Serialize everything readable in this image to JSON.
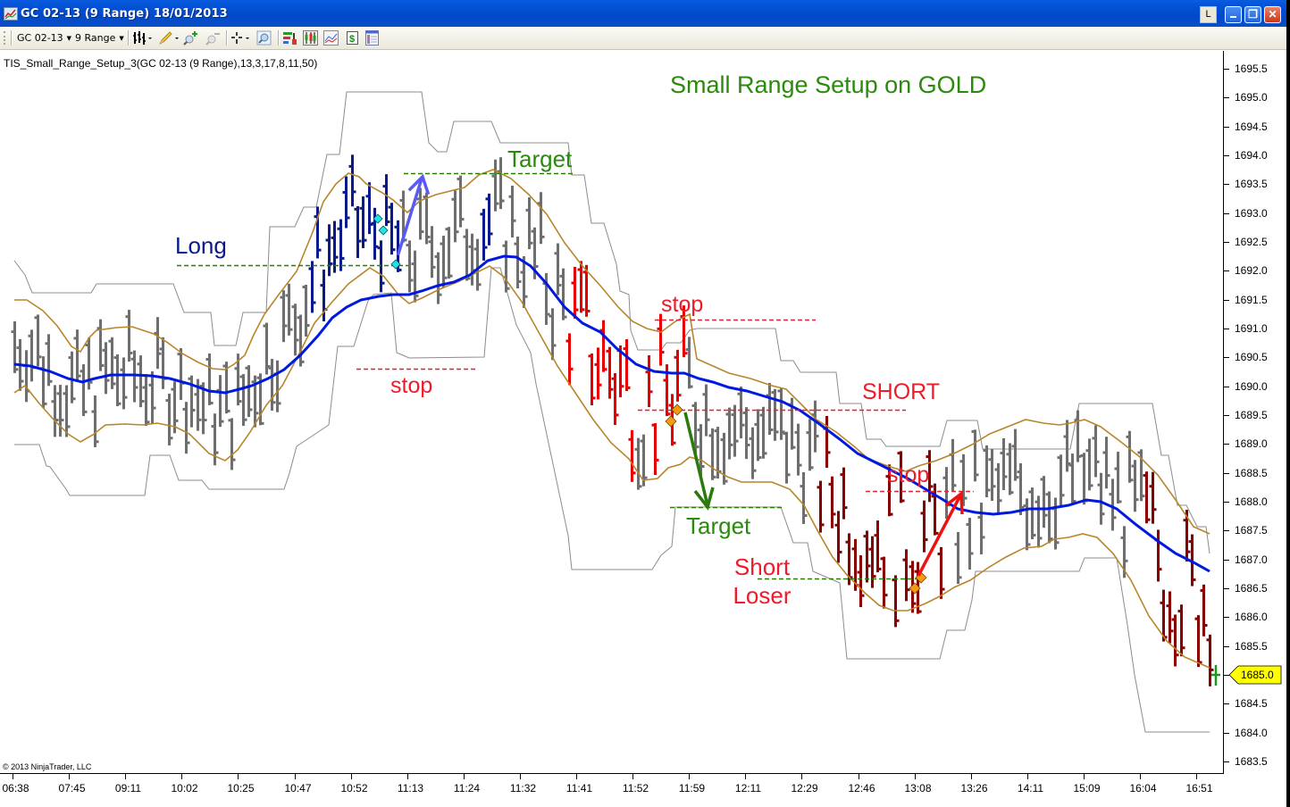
{
  "window": {
    "title": "GC 02-13 (9 Range)  18/01/2013",
    "buttons": {
      "link": "L",
      "minimize": "_",
      "maximize": "❐",
      "close": "✕"
    }
  },
  "toolbar": {
    "instrument": "GC 02-13",
    "interval": "9 Range",
    "icons": [
      "bar-style-icon",
      "drawing-pencil-icon",
      "zoom-in-icon",
      "zoom-out-icon",
      "crosshair-icon",
      "properties-magnifier-icon",
      "indicators-icon",
      "strategies-icon",
      "chart-trader-icon",
      "dollar-icon",
      "data-box-icon"
    ]
  },
  "indicator_label": "TIS_Small_Range_Setup_3(GC 02-13 (9 Range),13,3,17,8,11,50)",
  "copyright": "© 2013 NinjaTrader, LLC",
  "colors": {
    "neutral_bar": "#6e6e6e",
    "long_bar": "#0a1a8c",
    "short_bar": "#e80000",
    "short_loser_bar": "#880000",
    "ma_line": "#0019e0",
    "band_line": "#b8862a",
    "channel_line": "#8c8c8c",
    "title_green": "#2a8a0c",
    "annot_red": "#f01a2a",
    "annot_blue": "#0a1a8c",
    "last_price_bg": "#ffff00"
  },
  "last_price": "1685.0",
  "chart_data": {
    "type": "line",
    "title": "Small Range Setup on GOLD",
    "subtitle": "TIS_Small_Range_Setup_3(GC 02-13 (9 Range),13,3,17,8,11,50)",
    "xlabel": "",
    "ylabel": "",
    "ylim": [
      1683.5,
      1695.5
    ],
    "y_ticks": [
      "1695.5",
      "1695.0",
      "1694.5",
      "1694.0",
      "1693.5",
      "1693.0",
      "1692.5",
      "1692.0",
      "1691.5",
      "1691.0",
      "1690.5",
      "1690.0",
      "1689.5",
      "1689.0",
      "1688.5",
      "1688.0",
      "1687.5",
      "1687.0",
      "1686.5",
      "1686.0",
      "1685.5",
      "1685.0",
      "1684.5",
      "1684.0",
      "1683.5"
    ],
    "x_ticks": [
      "06:38",
      "07:45",
      "09:11",
      "10:02",
      "10:25",
      "10:47",
      "10:52",
      "11:13",
      "11:24",
      "11:32",
      "11:41",
      "11:52",
      "11:59",
      "12:11",
      "12:29",
      "12:46",
      "13:08",
      "13:26",
      "14:11",
      "15:09",
      "16:04",
      "16:51"
    ],
    "grid": false,
    "legend": null,
    "series": [
      {
        "name": "Moving average (blue)",
        "x": [
          "06:38",
          "07:45",
          "09:11",
          "10:02",
          "10:25",
          "10:47",
          "10:52",
          "11:13",
          "11:24",
          "11:32",
          "11:41",
          "11:52",
          "11:59",
          "12:11",
          "12:29",
          "12:46",
          "13:08",
          "13:26",
          "14:11",
          "15:09",
          "16:04",
          "16:51"
        ],
        "values": [
          1690.3,
          1690.1,
          1690.2,
          1690.0,
          1690.2,
          1690.8,
          1691.5,
          1691.6,
          1692.0,
          1692.2,
          1691.6,
          1690.7,
          1690.3,
          1690.0,
          1689.6,
          1688.8,
          1688.2,
          1687.9,
          1687.9,
          1688.0,
          1687.4,
          1686.9
        ]
      },
      {
        "name": "Upper band (gold)",
        "x": [
          "06:38",
          "07:45",
          "09:11",
          "10:02",
          "10:25",
          "10:47",
          "10:52",
          "11:13",
          "11:24",
          "11:32",
          "11:41",
          "11:52",
          "11:59",
          "12:11",
          "12:29",
          "12:46",
          "13:08",
          "13:26",
          "14:11",
          "15:09",
          "16:04",
          "16:51"
        ],
        "values": [
          1691.4,
          1690.9,
          1691.0,
          1690.4,
          1690.9,
          1692.7,
          1693.6,
          1693.1,
          1693.6,
          1693.9,
          1692.5,
          1690.6,
          1690.3,
          1690.0,
          1689.6,
          1688.0,
          1687.6,
          1688.3,
          1688.9,
          1689.0,
          1687.7,
          1686.7
        ]
      },
      {
        "name": "Lower band (gold)",
        "x": [
          "06:38",
          "07:45",
          "09:11",
          "10:02",
          "10:25",
          "10:47",
          "10:52",
          "11:13",
          "11:24",
          "11:32",
          "11:41",
          "11:52",
          "11:59",
          "12:11",
          "12:29",
          "12:46",
          "13:08",
          "13:26",
          "14:11",
          "15:09",
          "16:04",
          "16:51"
        ],
        "values": [
          1689.9,
          1689.0,
          1689.3,
          1688.7,
          1689.2,
          1690.3,
          1691.4,
          1691.5,
          1692.1,
          1691.5,
          1689.9,
          1688.1,
          1688.7,
          1688.3,
          1687.9,
          1686.4,
          1686.0,
          1686.5,
          1687.0,
          1687.4,
          1685.6,
          1685.1
        ]
      },
      {
        "name": "Channel high (gray)",
        "x": [
          "06:38",
          "07:45",
          "09:11",
          "10:02",
          "10:25",
          "10:47",
          "10:52",
          "11:13",
          "11:24",
          "11:32",
          "11:41",
          "11:52",
          "11:59",
          "12:11",
          "12:29",
          "12:46",
          "13:08",
          "13:26",
          "14:11",
          "15:09",
          "16:04",
          "16:51"
        ],
        "values": [
          1691.5,
          1691.8,
          1691.8,
          1691.0,
          1691.5,
          1692.5,
          1695.1,
          1694.2,
          1694.6,
          1693.7,
          1691.4,
          1690.3,
          1691.0,
          1691.0,
          1689.9,
          1689.3,
          1688.8,
          1688.8,
          1689.0,
          1689.7,
          1689.7,
          1687.0
        ]
      },
      {
        "name": "Channel low (gray)",
        "x": [
          "06:38",
          "07:45",
          "09:11",
          "10:02",
          "10:25",
          "10:47",
          "10:52",
          "11:13",
          "11:24",
          "11:32",
          "11:41",
          "11:52",
          "11:59",
          "12:11",
          "12:29",
          "12:46",
          "13:08",
          "13:26",
          "14:11",
          "15:09",
          "16:04",
          "16:51"
        ],
        "values": [
          1689.0,
          1688.1,
          1688.6,
          1688.2,
          1689.0,
          1689.7,
          1691.0,
          1690.5,
          1690.5,
          1691.5,
          1687.0,
          1687.0,
          1687.5,
          1687.9,
          1686.8,
          1685.3,
          1685.3,
          1685.3,
          1685.8,
          1686.9,
          1684.0,
          1684.0
        ]
      }
    ],
    "annotations": [
      {
        "text": "Long",
        "price": 1692.0,
        "color": "#0a1a8c",
        "line": "green dashed entry"
      },
      {
        "text": "Target",
        "price": 1693.7,
        "color": "#2a8a0c",
        "line": "green dashed"
      },
      {
        "text": "stop",
        "price": 1690.3,
        "color": "#f01a2a",
        "line": "red dashed"
      },
      {
        "text": "stop",
        "price": 1691.2,
        "color": "#f01a2a",
        "line": "red dashed"
      },
      {
        "text": "SHORT",
        "price": 1689.6,
        "color": "#f01a2a",
        "line": "red dashed"
      },
      {
        "text": "Target",
        "price": 1687.9,
        "color": "#2a8a0c",
        "line": "green dashed"
      },
      {
        "text": "Short Loser",
        "price": 1686.7,
        "color": "#f01a2a",
        "line": "green dashed entry"
      },
      {
        "text": "stop",
        "price": 1688.2,
        "color": "#f01a2a",
        "line": "red dashed"
      }
    ],
    "last_price": 1685.0
  }
}
